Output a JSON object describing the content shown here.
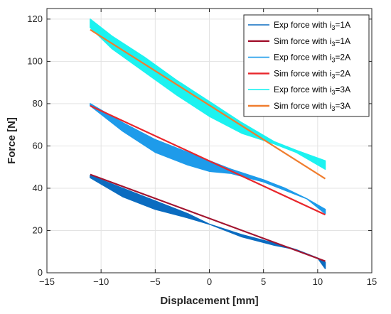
{
  "chart_data": {
    "type": "line",
    "xlabel": "Displacement [mm]",
    "ylabel": "Force [N]",
    "xlim": [
      -15,
      15
    ],
    "ylim": [
      0,
      125
    ],
    "xticks": [
      -15,
      -10,
      -5,
      0,
      5,
      10,
      15
    ],
    "yticks": [
      0,
      20,
      40,
      60,
      80,
      100,
      120
    ],
    "xtick_labels": [
      "−15",
      "−10",
      "−5",
      "0",
      "5",
      "10",
      "15"
    ],
    "ytick_labels": [
      "0",
      "20",
      "40",
      "60",
      "80",
      "100",
      "120"
    ],
    "grid": true,
    "legend_position": "top-right",
    "series": [
      {
        "name": "Exp force with i3=1A",
        "label_main": "Exp force with i",
        "label_sub": "3",
        "label_tail": "=1A",
        "kind": "hysteresis",
        "color": "#0B6CC0",
        "upper": {
          "x": [
            -11,
            -8,
            -5,
            -2,
            0,
            3,
            6,
            8,
            10,
            10.7
          ],
          "y": [
            46,
            40,
            34,
            28,
            23,
            18,
            14,
            11,
            7,
            5
          ]
        },
        "lower": {
          "x": [
            -11,
            -8,
            -5,
            -2,
            0,
            3,
            6,
            8,
            10,
            10.7
          ],
          "y": [
            45,
            36,
            30,
            26,
            23,
            17,
            13,
            11,
            7,
            2
          ]
        }
      },
      {
        "name": "Sim force with i3=1A",
        "label_main": "Sim force with i",
        "label_sub": "3",
        "label_tail": "=1A",
        "kind": "line",
        "color": "#A2142F",
        "x": [
          -11,
          10.7
        ],
        "y": [
          46.5,
          5.5
        ]
      },
      {
        "name": "Exp force with i3=2A",
        "label_main": "Exp force with i",
        "label_sub": "3",
        "label_tail": "=2A",
        "kind": "hysteresis",
        "color": "#1E9BEA",
        "upper": {
          "x": [
            -11,
            -8,
            -5,
            -2,
            0,
            2,
            5,
            7,
            9,
            10.7
          ],
          "y": [
            80,
            71,
            63,
            57,
            53,
            49,
            44,
            40,
            35,
            30
          ]
        },
        "lower": {
          "x": [
            -11,
            -8,
            -5,
            -2,
            0,
            2,
            5,
            7,
            9,
            10.7
          ],
          "y": [
            79,
            67,
            57,
            51,
            48,
            47,
            43,
            39,
            35,
            28
          ]
        }
      },
      {
        "name": "Sim force with i3=2A",
        "label_main": "Sim force with i",
        "label_sub": "3",
        "label_tail": "=2A",
        "kind": "line",
        "color": "#E8262B",
        "x": [
          -11,
          10.7
        ],
        "y": [
          79,
          27.5
        ]
      },
      {
        "name": "Exp force with i3=3A",
        "label_main": "Exp force with i",
        "label_sub": "3",
        "label_tail": "=3A",
        "kind": "hysteresis",
        "color": "#1CF2F0",
        "upper": {
          "x": [
            -11,
            -9,
            -6,
            -3,
            0,
            3,
            6,
            8,
            10.7
          ],
          "y": [
            120,
            112,
            102,
            91,
            81,
            71,
            62,
            58,
            53
          ]
        },
        "lower": {
          "x": [
            -11,
            -9,
            -6,
            -3,
            0,
            3,
            6,
            8,
            10.7
          ],
          "y": [
            116,
            106,
            95,
            84,
            74,
            66,
            61,
            57,
            49
          ]
        }
      },
      {
        "name": "Sim force with i3=3A",
        "label_main": "Sim force with i",
        "label_sub": "3",
        "label_tail": "=3A",
        "kind": "line",
        "color": "#F07D2E",
        "x": [
          -11,
          10.7
        ],
        "y": [
          115,
          44.5
        ]
      }
    ]
  }
}
